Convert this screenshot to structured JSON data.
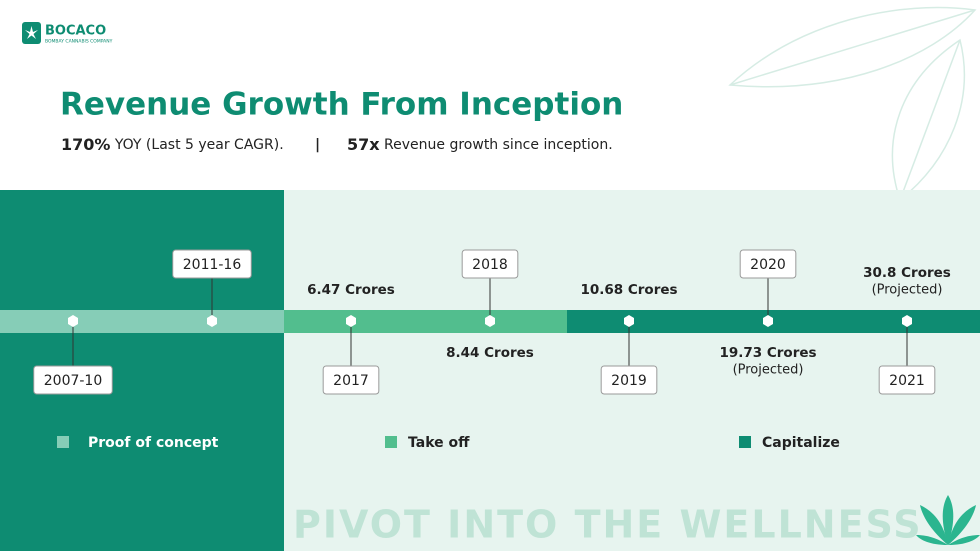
{
  "logo": {
    "name": "BOCACO",
    "tagline": "BOMBAY CANNABIS COMPANY"
  },
  "title": "Revenue Growth From Inception",
  "highlights": [
    {
      "figure": "170%",
      "text": "YOY (Last 5 year CAGR)."
    },
    {
      "figure": "57x",
      "text": "Revenue growth since inception."
    }
  ],
  "separator": "|",
  "timeline": [
    {
      "year": "2007-10"
    },
    {
      "year": "2011-16"
    },
    {
      "year": "2017",
      "revenue": "6.47 Crores"
    },
    {
      "year": "2018",
      "revenue": "8.44 Crores"
    },
    {
      "year": "2019",
      "revenue": "10.68 Crores"
    },
    {
      "year": "2020",
      "revenue": "19.73 Crores",
      "note": "(Projected)"
    },
    {
      "year": "2021",
      "revenue": "30.8 Crores",
      "note": "(Projected)"
    }
  ],
  "phases": [
    "Proof of concept",
    "Take off",
    "Capitalize"
  ],
  "footer": "PIVOT INTO THE WELLNESS"
}
